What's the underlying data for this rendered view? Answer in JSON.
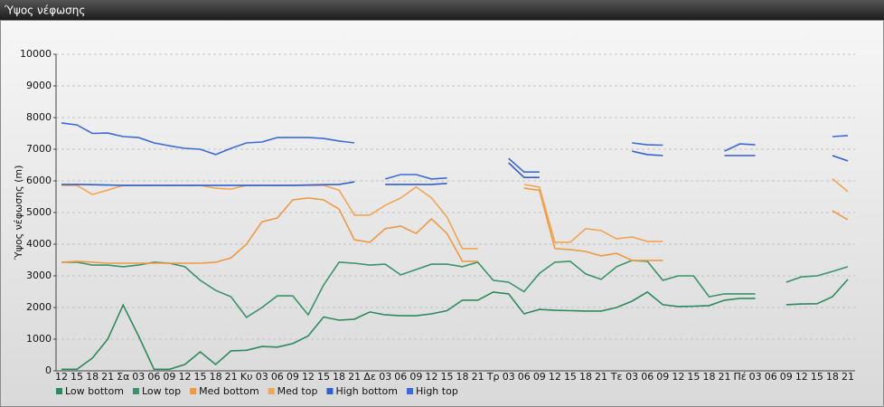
{
  "chart_data": {
    "type": "line",
    "title": "Ύψος νέφωσης",
    "y_label": "Ύψος νέφωσης (m)",
    "categories": [
      "12",
      "15",
      "18",
      "21",
      "Σα",
      "03",
      "06",
      "09",
      "12",
      "15",
      "18",
      "21",
      "Κυ",
      "03",
      "06",
      "09",
      "12",
      "15",
      "18",
      "21",
      "Δε",
      "03",
      "06",
      "09",
      "12",
      "15",
      "18",
      "21",
      "Τρ",
      "03",
      "06",
      "09",
      "12",
      "15",
      "18",
      "21",
      "Τε",
      "03",
      "06",
      "09",
      "12",
      "15",
      "18",
      "21",
      "Πέ",
      "03",
      "06",
      "09",
      "12",
      "15",
      "18",
      "21"
    ],
    "ylim": [
      0,
      10000
    ],
    "yticks": [
      0,
      1000,
      2000,
      3000,
      4000,
      5000,
      6000,
      7000,
      8000,
      9000,
      10000
    ],
    "grid": true,
    "legend": "bottom-left",
    "series": [
      {
        "name": "Low bottom",
        "color": "#2e8a5c",
        "values": [
          50,
          50,
          400,
          1000,
          2080,
          1100,
          50,
          50,
          200,
          600,
          200,
          630,
          650,
          770,
          750,
          860,
          1100,
          1700,
          1600,
          1630,
          1860,
          1770,
          1740,
          1740,
          1800,
          1900,
          2230,
          2230,
          2490,
          2430,
          1800,
          1940,
          1910,
          1900,
          1890,
          1890,
          2000,
          2200,
          2490,
          2090,
          2030,
          2040,
          2060,
          2230,
          2290,
          2290,
          null,
          2090,
          2110,
          2120,
          2340,
          2890
        ]
      },
      {
        "name": "Low top",
        "color": "#3a9468",
        "values": [
          3430,
          3430,
          3340,
          3340,
          3290,
          3340,
          3430,
          3400,
          3290,
          2860,
          2540,
          2340,
          1690,
          2000,
          2370,
          2370,
          1770,
          2710,
          3430,
          3400,
          3340,
          3370,
          3030,
          3200,
          3370,
          3370,
          3290,
          3430,
          2860,
          2800,
          2500,
          3080,
          3430,
          3460,
          3060,
          2890,
          3290,
          3490,
          3460,
          2860,
          3000,
          3000,
          2340,
          2430,
          2430,
          2430,
          null,
          2800,
          2970,
          3000,
          3140,
          3290
        ]
      },
      {
        "name": "Med bottom",
        "color": "#ee9a45",
        "values": [
          3430,
          3460,
          3430,
          3400,
          3400,
          3400,
          3400,
          3400,
          3400,
          3400,
          3430,
          3570,
          4000,
          4710,
          4830,
          5400,
          5460,
          5400,
          5110,
          4140,
          4060,
          4490,
          4570,
          4340,
          4800,
          4340,
          3460,
          3460,
          null,
          null,
          5770,
          5700,
          3860,
          3830,
          3770,
          3630,
          3710,
          3490,
          3490,
          3490,
          null,
          null,
          null,
          null,
          null,
          null,
          null,
          null,
          null,
          null,
          5060,
          4770
        ]
      },
      {
        "name": "Med top",
        "color": "#f3a552",
        "values": [
          5860,
          5860,
          5570,
          5710,
          5860,
          5860,
          5860,
          5860,
          5860,
          5860,
          5770,
          5740,
          5860,
          5860,
          5860,
          5860,
          5860,
          5860,
          5710,
          4920,
          4920,
          5230,
          5460,
          5810,
          5460,
          4860,
          3860,
          3860,
          null,
          null,
          5890,
          5800,
          4060,
          4060,
          4490,
          4430,
          4170,
          4230,
          4090,
          4090,
          null,
          null,
          null,
          null,
          null,
          null,
          null,
          null,
          null,
          null,
          6070,
          5660
        ]
      },
      {
        "name": "High bottom",
        "color": "#2f5fd0",
        "values": [
          5890,
          5890,
          5880,
          5870,
          5860,
          5860,
          5860,
          5860,
          5860,
          5860,
          5860,
          5860,
          5860,
          5860,
          5860,
          5860,
          5870,
          5880,
          5890,
          5970,
          null,
          5890,
          5890,
          5890,
          5890,
          5920,
          null,
          null,
          null,
          6570,
          6110,
          6110,
          null,
          null,
          null,
          null,
          null,
          6940,
          6830,
          6800,
          null,
          null,
          null,
          6800,
          6800,
          6800,
          null,
          null,
          null,
          null,
          6800,
          6630
        ]
      },
      {
        "name": "High top",
        "color": "#3d6ad8",
        "values": [
          7830,
          7770,
          7500,
          7510,
          7400,
          7370,
          7200,
          7110,
          7030,
          7000,
          6830,
          7030,
          7200,
          7230,
          7370,
          7370,
          7370,
          7340,
          7260,
          7200,
          null,
          6060,
          6200,
          6200,
          6060,
          6090,
          null,
          null,
          null,
          6710,
          6280,
          6280,
          null,
          null,
          null,
          null,
          null,
          7200,
          7140,
          7130,
          null,
          null,
          null,
          6940,
          7170,
          7140,
          null,
          null,
          null,
          null,
          7400,
          7430
        ]
      }
    ]
  }
}
